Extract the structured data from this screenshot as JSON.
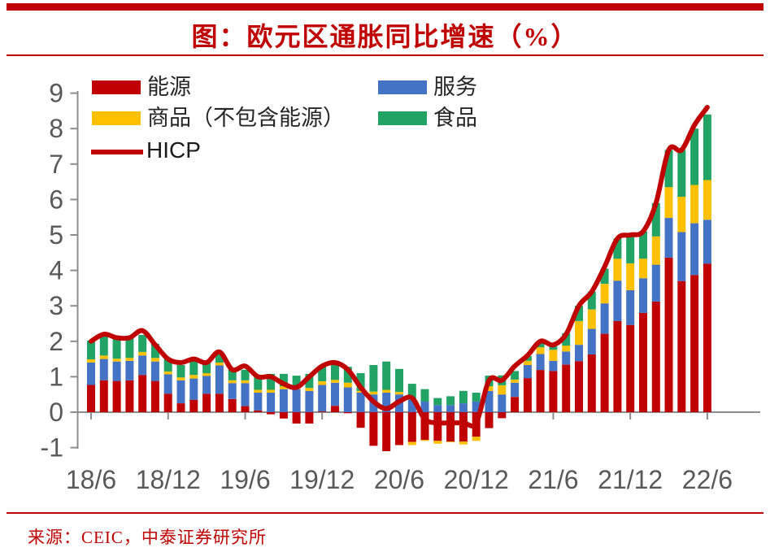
{
  "page": {
    "title": "图：欧元区通胀同比增速（%）",
    "source": "来源：CEIC，中泰证券研究所",
    "accent_color": "#c00000",
    "axis_color": "#8c8c8c",
    "axis_label_color": "#595959"
  },
  "legend": {
    "items": [
      {
        "label": "能源",
        "color": "#c00000",
        "swatch": "box"
      },
      {
        "label": "服务",
        "color": "#4472c4",
        "swatch": "box"
      },
      {
        "label": "商品（不包含能源）",
        "color": "#ffc000",
        "swatch": "box"
      },
      {
        "label": "食品",
        "color": "#21a366",
        "swatch": "box"
      },
      {
        "label": "HICP",
        "color": "#c00000",
        "swatch": "line"
      }
    ]
  },
  "chart_data": {
    "type": "bar",
    "subtype": "stacked-bars-with-line-overlay",
    "title": "图：欧元区通胀同比增速（%）",
    "xlabel": "",
    "ylabel": "",
    "ylim": [
      -1,
      9
    ],
    "y_ticks": [
      -1,
      0,
      1,
      2,
      3,
      4,
      5,
      6,
      7,
      8,
      9
    ],
    "grid": false,
    "legend_position": "top-inside",
    "categories": [
      "18/6",
      "18/7",
      "18/8",
      "18/9",
      "18/10",
      "18/11",
      "18/12",
      "19/1",
      "19/2",
      "19/3",
      "19/4",
      "19/5",
      "19/6",
      "19/7",
      "19/8",
      "19/9",
      "19/10",
      "19/11",
      "19/12",
      "20/1",
      "20/2",
      "20/3",
      "20/4",
      "20/5",
      "20/6",
      "20/7",
      "20/8",
      "20/9",
      "20/10",
      "20/11",
      "20/12",
      "21/1",
      "21/2",
      "21/3",
      "21/4",
      "21/5",
      "21/6",
      "21/7",
      "21/8",
      "21/9",
      "21/10",
      "21/11",
      "21/12",
      "22/1",
      "22/2",
      "22/3",
      "22/4",
      "22/5",
      "22/6"
    ],
    "x_tick_indices": [
      0,
      6,
      12,
      18,
      24,
      30,
      36,
      42,
      48
    ],
    "x_tick_labels": [
      "18/6",
      "18/12",
      "19/6",
      "19/12",
      "20/6",
      "20/12",
      "21/6",
      "21/12",
      "22/6"
    ],
    "series": [
      {
        "name": "能源",
        "color": "#c00000",
        "values": [
          0.77,
          0.9,
          0.88,
          0.9,
          1.05,
          0.88,
          0.52,
          0.25,
          0.35,
          0.52,
          0.52,
          0.37,
          0.17,
          0.05,
          -0.06,
          -0.18,
          -0.32,
          -0.32,
          0.02,
          0.18,
          -0.03,
          -0.44,
          -0.95,
          -1.1,
          -0.93,
          -0.84,
          -0.78,
          -0.81,
          -0.83,
          -0.83,
          -0.69,
          -0.45,
          -0.17,
          0.43,
          0.96,
          1.19,
          1.16,
          1.34,
          1.44,
          1.63,
          2.21,
          2.57,
          2.46,
          2.8,
          3.12,
          4.36,
          3.7,
          3.87,
          4.19
        ]
      },
      {
        "name": "服务",
        "color": "#4472c4",
        "values": [
          0.63,
          0.6,
          0.55,
          0.55,
          0.55,
          0.55,
          0.55,
          0.65,
          0.6,
          0.5,
          0.8,
          0.45,
          0.65,
          0.5,
          0.55,
          0.65,
          0.65,
          0.6,
          0.75,
          0.65,
          0.7,
          0.55,
          0.5,
          0.55,
          0.5,
          0.35,
          0.3,
          0.2,
          0.2,
          0.25,
          0.3,
          0.6,
          0.5,
          0.4,
          0.37,
          0.45,
          0.29,
          0.37,
          0.46,
          0.72,
          0.86,
          1.14,
          0.98,
          0.98,
          1.04,
          1.12,
          1.38,
          1.46,
          1.24
        ]
      },
      {
        "name": "商品（不包含能源）",
        "color": "#ffc000",
        "values": [
          0.09,
          0.1,
          0.08,
          0.08,
          0.1,
          0.1,
          0.08,
          0.08,
          0.1,
          0.08,
          0.08,
          0.08,
          0.08,
          0.08,
          0.08,
          0.08,
          0.08,
          0.08,
          0.1,
          0.08,
          0.13,
          0.05,
          0.08,
          0.08,
          0.07,
          -0.09,
          -0.03,
          -0.08,
          -0.02,
          -0.08,
          -0.12,
          0.13,
          0.26,
          0.09,
          0.12,
          0.19,
          0.31,
          0.17,
          0.67,
          0.55,
          0.55,
          0.62,
          0.76,
          0.55,
          0.8,
          0.87,
          1.0,
          1.08,
          1.12
        ]
      },
      {
        "name": "食品",
        "color": "#21a366",
        "values": [
          0.53,
          0.55,
          0.55,
          0.55,
          0.48,
          0.4,
          0.35,
          0.35,
          0.4,
          0.35,
          0.3,
          0.3,
          0.3,
          0.4,
          0.45,
          0.35,
          0.3,
          0.4,
          0.4,
          0.45,
          0.45,
          0.5,
          0.75,
          0.8,
          0.65,
          0.45,
          0.35,
          0.2,
          0.25,
          0.35,
          0.25,
          0.3,
          0.28,
          0.24,
          0.13,
          0.12,
          0.1,
          0.35,
          0.43,
          0.5,
          0.43,
          0.57,
          0.8,
          0.77,
          0.94,
          1.05,
          1.32,
          1.59,
          1.85
        ]
      }
    ],
    "line": {
      "name": "HICP",
      "color": "#c00000",
      "values": [
        2.0,
        2.2,
        2.1,
        2.1,
        2.3,
        1.9,
        1.5,
        1.4,
        1.5,
        1.4,
        1.7,
        1.2,
        1.3,
        1.0,
        1.0,
        0.8,
        0.7,
        1.0,
        1.3,
        1.4,
        1.2,
        0.7,
        0.3,
        0.1,
        0.3,
        0.4,
        -0.2,
        -0.3,
        -0.3,
        -0.3,
        -0.3,
        0.9,
        0.9,
        1.3,
        1.6,
        2.0,
        1.9,
        2.2,
        3.0,
        3.4,
        4.1,
        4.9,
        5.0,
        5.1,
        5.9,
        7.4,
        7.4,
        8.1,
        8.6
      ]
    }
  }
}
